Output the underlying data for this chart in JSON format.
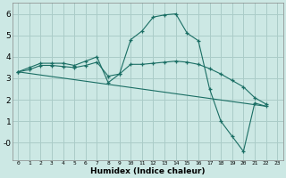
{
  "title": "",
  "xlabel": "Humidex (Indice chaleur)",
  "ylabel": "",
  "bg_color": "#cce8e4",
  "grid_color": "#aaccc8",
  "line_color": "#1a6e64",
  "spine_color": "#888888",
  "xlim": [
    -0.5,
    23.5
  ],
  "ylim": [
    -0.8,
    6.5
  ],
  "yticks": [
    0,
    1,
    2,
    3,
    4,
    5,
    6
  ],
  "ytick_labels": [
    "-0",
    "1",
    "2",
    "3",
    "4",
    "5",
    "6"
  ],
  "xticks": [
    0,
    1,
    2,
    3,
    4,
    5,
    6,
    7,
    8,
    9,
    10,
    11,
    12,
    13,
    14,
    15,
    16,
    17,
    18,
    19,
    20,
    21,
    22,
    23
  ],
  "line1_x": [
    0,
    1,
    2,
    3,
    4,
    5,
    6,
    7,
    8,
    9,
    10,
    11,
    12,
    13,
    14,
    15,
    16,
    17,
    18,
    19,
    20,
    21,
    22
  ],
  "line1_y": [
    3.3,
    3.5,
    3.7,
    3.7,
    3.7,
    3.6,
    3.8,
    4.0,
    2.8,
    3.2,
    4.8,
    5.2,
    5.85,
    5.95,
    6.0,
    5.1,
    4.75,
    2.5,
    1.0,
    0.3,
    -0.4,
    1.85,
    1.7
  ],
  "line2_x": [
    0,
    1,
    2,
    3,
    4,
    5,
    6,
    7,
    8,
    9,
    10,
    11,
    12,
    13,
    14,
    15,
    16,
    17,
    18,
    19,
    20,
    21,
    22
  ],
  "line2_y": [
    3.3,
    3.4,
    3.6,
    3.6,
    3.55,
    3.5,
    3.6,
    3.75,
    3.1,
    3.2,
    3.65,
    3.65,
    3.7,
    3.75,
    3.8,
    3.75,
    3.65,
    3.45,
    3.2,
    2.9,
    2.6,
    2.1,
    1.8
  ],
  "line3_x": [
    0,
    22
  ],
  "line3_y": [
    3.3,
    1.7
  ]
}
